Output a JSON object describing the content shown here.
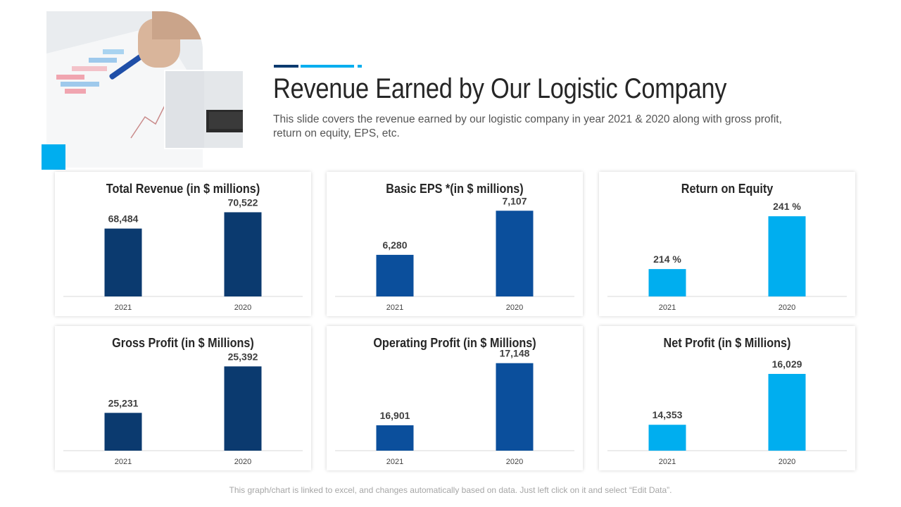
{
  "page": {
    "title": "Revenue Earned by Our Logistic Company",
    "subtitle": "This slide covers the revenue earned by our logistic company in year 2021 & 2020 along with gross profit, return on equity, EPS, etc.",
    "footer": "This graph/chart is linked to excel, and changes automatically based on data. Just left click on it and select “Edit Data”."
  },
  "colors": {
    "navy": "#0b3a6f",
    "blue": "#0b4f9c",
    "cyan": "#00aeef",
    "bar_dark": "#0a2f5a",
    "bar_mid": "#1565c0"
  },
  "chart_data": [
    {
      "type": "bar",
      "title": "Total Revenue (in $ millions)",
      "categories": [
        "2021",
        "2020"
      ],
      "values": [
        68484,
        70522
      ],
      "labels": [
        "68,484",
        "70,522"
      ],
      "color": "#0b3a6f",
      "ylim": [
        60000,
        71000
      ]
    },
    {
      "type": "bar",
      "title": "Basic EPS *(in $ millions)",
      "categories": [
        "2021",
        "2020"
      ],
      "values": [
        6280,
        7107
      ],
      "labels": [
        "6,280",
        "7,107"
      ],
      "color": "#0b4f9c",
      "ylim": [
        5500,
        7150
      ]
    },
    {
      "type": "bar",
      "title": "Return on Equity",
      "categories": [
        "2021",
        "2020"
      ],
      "values": [
        214,
        241
      ],
      "labels": [
        "214 %",
        "241 %"
      ],
      "color": "#00aeef",
      "ylim": [
        200,
        245
      ]
    },
    {
      "type": "bar",
      "title": "Gross Profit (in $ Millions)",
      "categories": [
        "2021",
        "2020"
      ],
      "values": [
        25231,
        25392
      ],
      "labels": [
        "25,231",
        "25,392"
      ],
      "color": "#0b3a6f",
      "ylim": [
        25100,
        25405
      ]
    },
    {
      "type": "bar",
      "title": "Operating Profit (in $ Millions)",
      "categories": [
        "2021",
        "2020"
      ],
      "values": [
        16901,
        17148
      ],
      "labels": [
        "16,901",
        "17,148"
      ],
      "color": "#0b4f9c",
      "ylim": [
        16800,
        17150
      ]
    },
    {
      "type": "bar",
      "title": "Net Profit (in $ Millions)",
      "categories": [
        "2021",
        "2020"
      ],
      "values": [
        14353,
        16029
      ],
      "labels": [
        "14,353",
        "16,029"
      ],
      "color": "#00aeef",
      "ylim": [
        13500,
        16400
      ]
    }
  ]
}
